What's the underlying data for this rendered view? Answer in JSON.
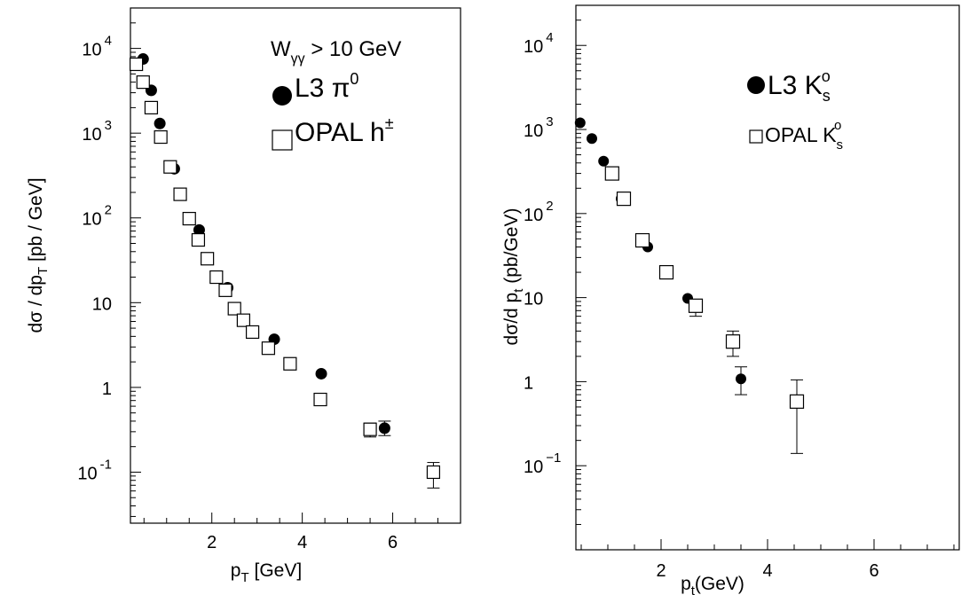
{
  "chart_data": [
    {
      "type": "scatter",
      "xlabel_main": "p",
      "xlabel_sub": "T",
      "xlabel_unit": "[GeV]",
      "ylabel_pre": "dσ / dp",
      "ylabel_sub": "T",
      "ylabel_post": " [pb / GeV]",
      "xlim": [
        0.2,
        7.5
      ],
      "ylim": [
        0.025,
        30000
      ],
      "yscale": "log",
      "grid": false,
      "xticks": [
        2,
        4,
        6
      ],
      "yticks": [
        {
          "value": 10000,
          "base": "10",
          "exp": "4"
        },
        {
          "value": 1000,
          "base": "10",
          "exp": "3"
        },
        {
          "value": 100,
          "base": "10",
          "exp": "2"
        },
        {
          "value": 10,
          "base": "10",
          "exp": ""
        },
        {
          "value": 1,
          "base": "1",
          "exp": ""
        },
        {
          "value": 0.1,
          "base": "10",
          "exp": "-1"
        }
      ],
      "annotation_main": "W",
      "annotation_sub": "γγ",
      "annotation_rest": " > 10 GeV",
      "legend_placement": "top-right",
      "series": [
        {
          "legend_main": "L3 π",
          "legend_sup": "0",
          "legend_sub": "",
          "marker": "filled-circle",
          "points": [
            {
              "x": 0.48,
              "y": 7500
            },
            {
              "x": 0.66,
              "y": 3200
            },
            {
              "x": 0.85,
              "y": 1300
            },
            {
              "x": 1.17,
              "y": 380
            },
            {
              "x": 1.72,
              "y": 72
            },
            {
              "x": 2.35,
              "y": 15
            },
            {
              "x": 3.38,
              "y": 3.7
            },
            {
              "x": 4.42,
              "y": 1.45
            },
            {
              "x": 5.82,
              "y": 0.33,
              "yerr": [
                0.27,
                0.4
              ]
            }
          ]
        },
        {
          "legend_main": "OPAL h",
          "legend_sup": "±",
          "legend_sub": "",
          "marker": "open-square",
          "points": [
            {
              "x": 0.33,
              "y": 6500
            },
            {
              "x": 0.48,
              "y": 4000
            },
            {
              "x": 0.66,
              "y": 2000
            },
            {
              "x": 0.87,
              "y": 900
            },
            {
              "x": 1.08,
              "y": 400
            },
            {
              "x": 1.3,
              "y": 190
            },
            {
              "x": 1.5,
              "y": 98
            },
            {
              "x": 1.7,
              "y": 55
            },
            {
              "x": 1.9,
              "y": 33
            },
            {
              "x": 2.1,
              "y": 20
            },
            {
              "x": 2.3,
              "y": 14
            },
            {
              "x": 2.5,
              "y": 8.5
            },
            {
              "x": 2.7,
              "y": 6.2
            },
            {
              "x": 2.9,
              "y": 4.5
            },
            {
              "x": 3.25,
              "y": 2.9
            },
            {
              "x": 3.73,
              "y": 1.9
            },
            {
              "x": 4.4,
              "y": 0.72
            },
            {
              "x": 5.5,
              "y": 0.32,
              "yerr": [
                0.26,
                0.38
              ]
            },
            {
              "x": 6.9,
              "y": 0.1,
              "yerr": [
                0.065,
                0.13
              ]
            }
          ]
        }
      ]
    },
    {
      "type": "scatter",
      "xlabel_main": "p",
      "xlabel_sub": "t",
      "xlabel_unit": "(GeV)",
      "ylabel_pre": "dσ/d p",
      "ylabel_sub": "t",
      "ylabel_post": "  (pb/GeV)",
      "xlim": [
        0.4,
        7.6
      ],
      "ylim": [
        0.01,
        30000
      ],
      "yscale": "log",
      "grid": false,
      "xticks": [
        2,
        4,
        6
      ],
      "yticks": [
        {
          "value": 10000,
          "base": "10",
          "exp": "4"
        },
        {
          "value": 1000,
          "base": "10",
          "exp": "3"
        },
        {
          "value": 100,
          "base": "10",
          "exp": "2"
        },
        {
          "value": 10,
          "base": "10",
          "exp": ""
        },
        {
          "value": 1,
          "base": "1",
          "exp": ""
        },
        {
          "value": 0.1,
          "base": "10",
          "exp": "−1"
        }
      ],
      "legend_placement": "top-right",
      "series": [
        {
          "legend_main": "L3 K",
          "legend_sup": "o",
          "legend_sub": "s",
          "marker": "filled-circle",
          "points": [
            {
              "x": 0.48,
              "y": 1200
            },
            {
              "x": 0.7,
              "y": 780
            },
            {
              "x": 0.92,
              "y": 420
            },
            {
              "x": 1.25,
              "y": 150
            },
            {
              "x": 1.75,
              "y": 40
            },
            {
              "x": 2.5,
              "y": 9.8
            },
            {
              "x": 3.5,
              "y": 1.08,
              "yerr": [
                0.7,
                1.5
              ]
            }
          ]
        },
        {
          "legend_main": "OPAL K",
          "legend_sup": "o",
          "legend_sub": "s",
          "marker": "open-square",
          "points": [
            {
              "x": 1.08,
              "y": 300
            },
            {
              "x": 1.3,
              "y": 150
            },
            {
              "x": 1.65,
              "y": 48
            },
            {
              "x": 2.1,
              "y": 20,
              "yerr": [
                17,
                23
              ]
            },
            {
              "x": 2.65,
              "y": 8,
              "yerr": [
                6,
                9
              ]
            },
            {
              "x": 3.35,
              "y": 3,
              "yerr": [
                2,
                4
              ]
            },
            {
              "x": 4.55,
              "y": 0.58,
              "yerr": [
                0.14,
                1.05
              ]
            }
          ]
        }
      ]
    }
  ]
}
